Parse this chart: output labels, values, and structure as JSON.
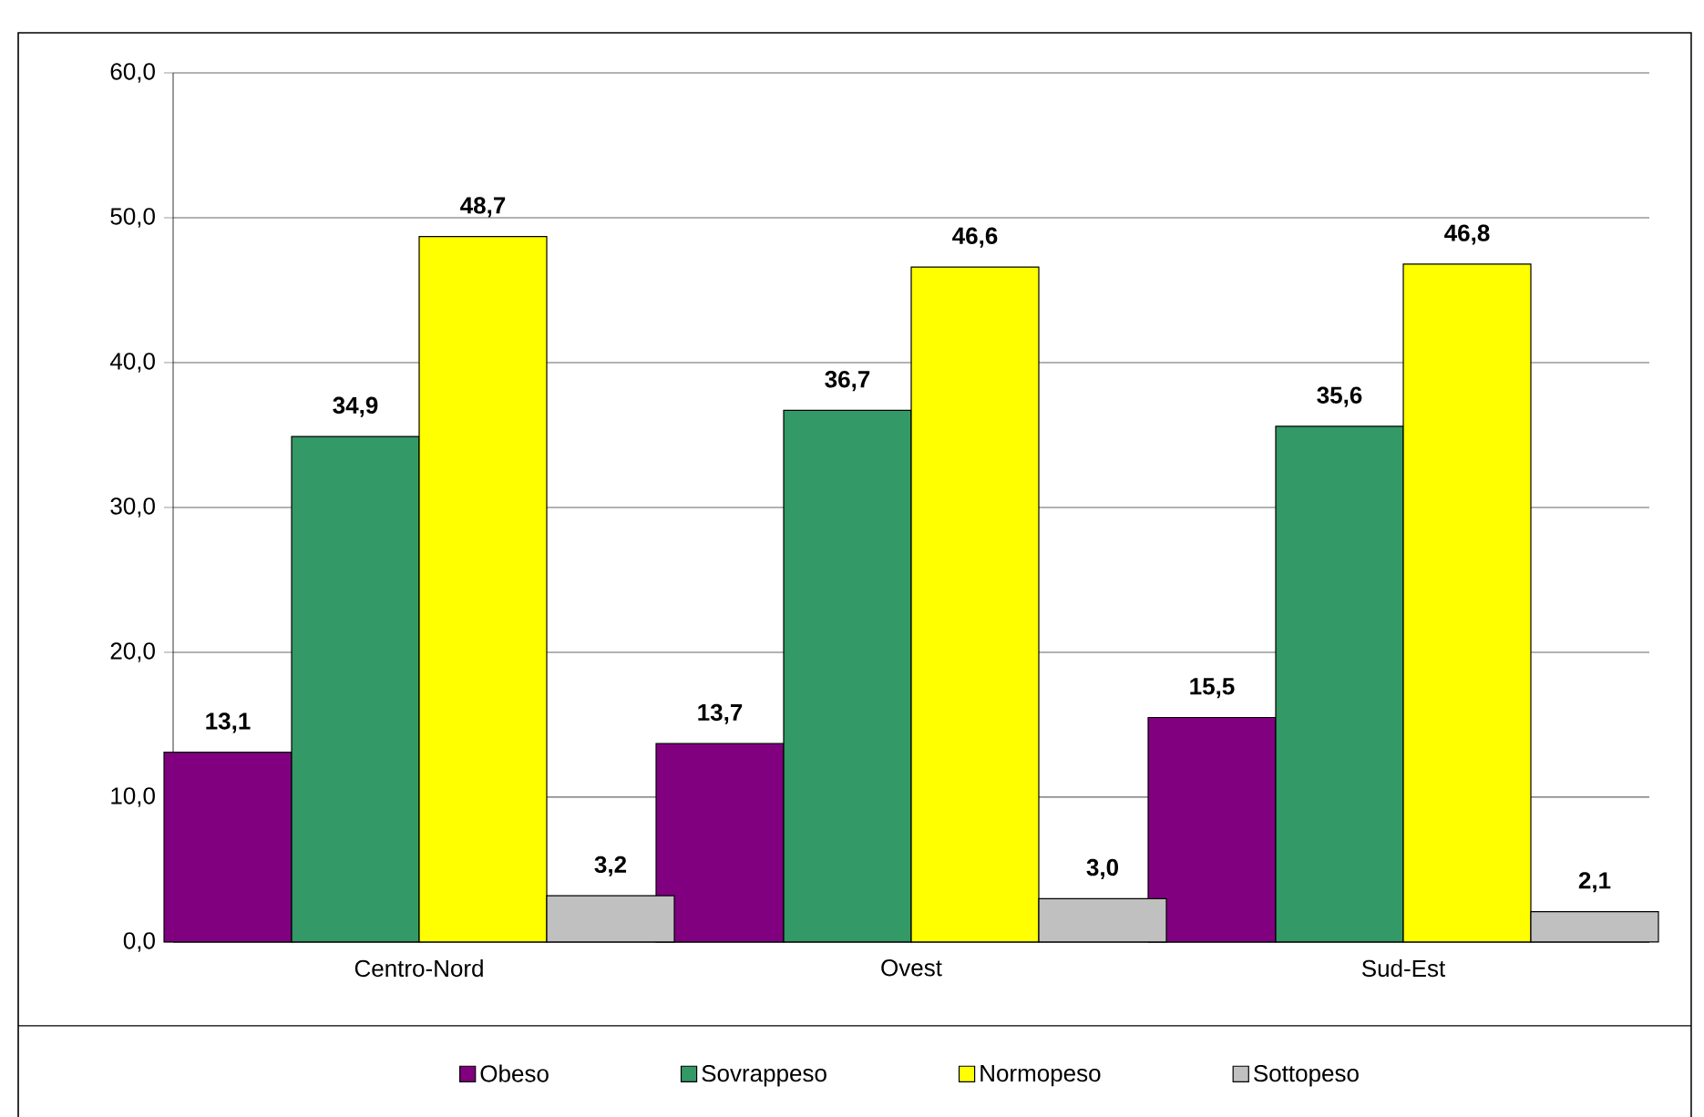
{
  "chart_data": {
    "type": "bar",
    "categories": [
      "Centro-Nord",
      "Ovest",
      "Sud-Est"
    ],
    "series": [
      {
        "name": "Obeso",
        "color": "#800080",
        "values": [
          13.1,
          13.7,
          15.5
        ],
        "value_labels": [
          "13,1",
          "13,7",
          "15,5"
        ]
      },
      {
        "name": "Sovrappeso",
        "color": "#339966",
        "values": [
          34.9,
          36.7,
          35.6
        ],
        "value_labels": [
          "34,9",
          "36,7",
          "35,6"
        ]
      },
      {
        "name": "Normopeso",
        "color": "#ffff00",
        "values": [
          48.7,
          46.6,
          46.8
        ],
        "value_labels": [
          "48,7",
          "46,6",
          "46,8"
        ]
      },
      {
        "name": "Sottopeso",
        "color": "#c0c0c0",
        "values": [
          3.2,
          3.0,
          2.1
        ],
        "value_labels": [
          "3,2",
          "3,0",
          "2,1"
        ]
      }
    ],
    "ylim": [
      0,
      60
    ],
    "yticks": [
      {
        "value": 0,
        "label": "0,0"
      },
      {
        "value": 10,
        "label": "10,0"
      },
      {
        "value": 20,
        "label": "20,0"
      },
      {
        "value": 30,
        "label": "30,0"
      },
      {
        "value": 40,
        "label": "40,0"
      },
      {
        "value": 50,
        "label": "50,0"
      },
      {
        "value": 60,
        "label": "60,0"
      }
    ],
    "grid": "y",
    "legend": "bottom"
  }
}
